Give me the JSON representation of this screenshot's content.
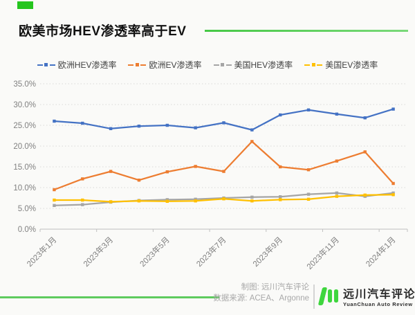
{
  "header": {
    "title": "欧美市场HEV渗透率高于EV"
  },
  "colors": {
    "accent_green": "#25c51e",
    "title_line_green": "#45c845",
    "footer_line_green": "#5ecb5e",
    "logo_green": "#3ed63e",
    "axis_text_gray": "#808080",
    "gridline_gray": "#d8d8d6"
  },
  "chart_data": {
    "type": "line",
    "title": "欧美市场HEV渗透率高于EV",
    "xlabel": "",
    "ylabel": "",
    "ylim": [
      0,
      35
    ],
    "y_tick_step": 5,
    "y_ticks": [
      "35.0%",
      "30.0%",
      "25.0%",
      "20.0%",
      "15.0%",
      "10.0%",
      "5.0%",
      "0.0%"
    ],
    "grid": "horizontal-dashed",
    "legend_position": "top",
    "x": [
      "2023年1月",
      "2023年2月",
      "2023年3月",
      "2023年4月",
      "2023年5月",
      "2023年6月",
      "2023年7月",
      "2023年8月",
      "2023年9月",
      "2023年10月",
      "2023年11月",
      "2023年12月",
      "2024年1月"
    ],
    "x_tick_labels": [
      "2023年1月",
      "2023年3月",
      "2023年5月",
      "2023年7月",
      "2023年9月",
      "2023年11月",
      "2024年1月"
    ],
    "x_tick_every": 2,
    "series": [
      {
        "name": "欧洲HEV渗透率",
        "color": "#4472c4",
        "values": [
          26.0,
          25.5,
          24.2,
          24.8,
          25.0,
          24.4,
          25.6,
          23.9,
          27.5,
          28.7,
          27.7,
          26.8,
          28.9
        ]
      },
      {
        "name": "欧洲EV渗透率",
        "color": "#ed7d31",
        "values": [
          9.5,
          12.1,
          13.9,
          11.8,
          13.8,
          15.1,
          13.9,
          21.1,
          15.0,
          14.3,
          16.4,
          18.6,
          11.0
        ]
      },
      {
        "name": "美国HEV渗透率",
        "color": "#a5a5a5",
        "values": [
          5.7,
          5.9,
          6.5,
          6.9,
          7.1,
          7.2,
          7.5,
          7.7,
          7.8,
          8.4,
          8.7,
          7.9,
          8.7
        ]
      },
      {
        "name": "美国EV渗透率",
        "color": "#ffc000",
        "values": [
          7.0,
          7.0,
          6.6,
          6.8,
          6.7,
          6.8,
          7.3,
          6.8,
          7.1,
          7.2,
          7.9,
          8.2,
          8.3
        ]
      }
    ]
  },
  "footer": {
    "credit_line1": "制图: 远川汽车评论",
    "credit_line2": "数据来源: ACEA、Argonne",
    "logo_text": "远川汽车评论",
    "logo_subtext": "YuanChuan  Auto  Review"
  }
}
